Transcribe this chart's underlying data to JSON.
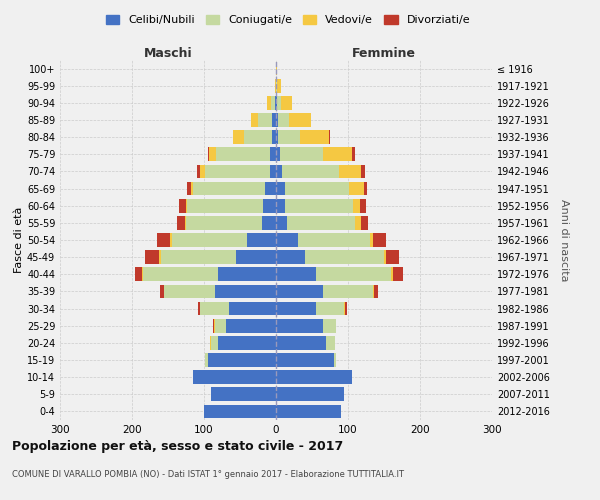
{
  "age_groups": [
    "0-4",
    "5-9",
    "10-14",
    "15-19",
    "20-24",
    "25-29",
    "30-34",
    "35-39",
    "40-44",
    "45-49",
    "50-54",
    "55-59",
    "60-64",
    "65-69",
    "70-74",
    "75-79",
    "80-84",
    "85-89",
    "90-94",
    "95-99",
    "100+"
  ],
  "birth_years": [
    "2012-2016",
    "2007-2011",
    "2002-2006",
    "1997-2001",
    "1992-1996",
    "1987-1991",
    "1982-1986",
    "1977-1981",
    "1972-1976",
    "1967-1971",
    "1962-1966",
    "1957-1961",
    "1952-1956",
    "1947-1951",
    "1942-1946",
    "1937-1941",
    "1932-1936",
    "1927-1931",
    "1922-1926",
    "1917-1921",
    "≤ 1916"
  ],
  "male": {
    "celibi": [
      100,
      90,
      115,
      95,
      80,
      70,
      65,
      85,
      80,
      55,
      40,
      20,
      18,
      15,
      8,
      8,
      5,
      5,
      2,
      0,
      0
    ],
    "coniugati": [
      0,
      0,
      0,
      3,
      10,
      15,
      40,
      70,
      105,
      105,
      105,
      105,
      105,
      100,
      90,
      75,
      40,
      20,
      5,
      0,
      0
    ],
    "vedovi": [
      0,
      0,
      0,
      0,
      1,
      1,
      1,
      1,
      1,
      2,
      2,
      2,
      2,
      3,
      8,
      10,
      15,
      10,
      5,
      1,
      0
    ],
    "divorziati": [
      0,
      0,
      0,
      0,
      1,
      2,
      2,
      5,
      10,
      20,
      18,
      10,
      10,
      5,
      4,
      2,
      0,
      0,
      0,
      0,
      0
    ]
  },
  "female": {
    "nubili": [
      90,
      95,
      105,
      80,
      70,
      65,
      55,
      65,
      55,
      40,
      30,
      15,
      12,
      12,
      8,
      5,
      3,
      3,
      2,
      0,
      0
    ],
    "coniugate": [
      0,
      0,
      0,
      3,
      12,
      18,
      40,
      70,
      105,
      110,
      100,
      95,
      95,
      90,
      80,
      60,
      30,
      15,
      5,
      2,
      0
    ],
    "vedove": [
      0,
      0,
      0,
      0,
      0,
      0,
      1,
      1,
      2,
      3,
      5,
      8,
      10,
      20,
      30,
      40,
      40,
      30,
      15,
      5,
      1
    ],
    "divorziate": [
      0,
      0,
      0,
      0,
      0,
      1,
      2,
      5,
      15,
      18,
      18,
      10,
      8,
      5,
      6,
      5,
      2,
      0,
      0,
      0,
      0
    ]
  },
  "colors": {
    "celibi": "#4472c4",
    "coniugati": "#c5d9a0",
    "vedovi": "#f5c842",
    "divorziati": "#c0392b"
  },
  "title": "Popolazione per età, sesso e stato civile - 2017",
  "subtitle": "COMUNE DI VARALLO POMBIA (NO) - Dati ISTAT 1° gennaio 2017 - Elaborazione TUTTITALIA.IT",
  "xlabel_left": "Maschi",
  "xlabel_right": "Femmine",
  "ylabel_left": "Fasce di età",
  "ylabel_right": "Anni di nascita",
  "xlim": 300,
  "legend_labels": [
    "Celibi/Nubili",
    "Coniugati/e",
    "Vedovi/e",
    "Divorziati/e"
  ],
  "bg_color": "#f0f0f0",
  "grid_color": "#cccccc"
}
